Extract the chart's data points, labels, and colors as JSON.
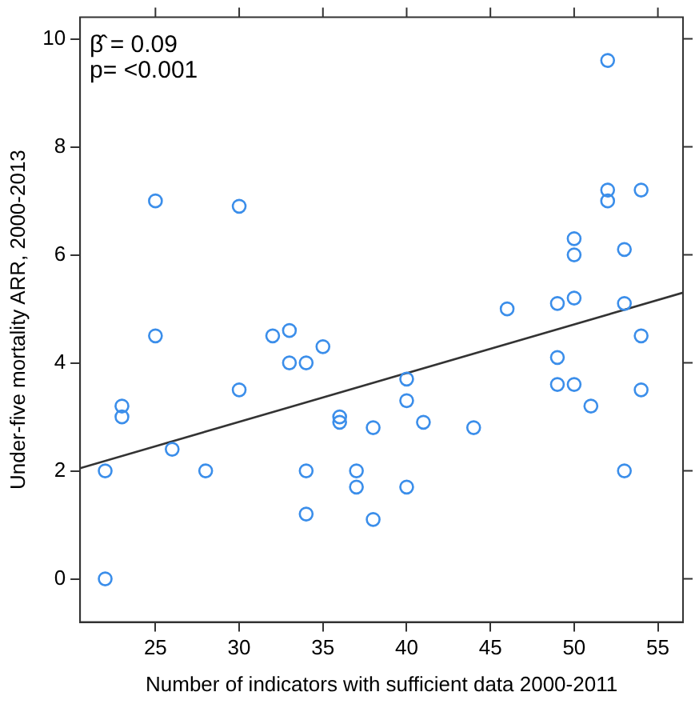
{
  "chart_data": {
    "type": "scatter",
    "xlabel": "Number of indicators with sufficient data 2000-2011",
    "ylabel": "Under-five mortality ARR, 2000-2013",
    "annotations": [
      "β̂ = 0.09",
      "p= <0.001"
    ],
    "series": [
      {
        "color": "#3b8eea",
        "marker": "circle",
        "x": [
          22,
          22,
          23,
          23,
          25,
          25,
          26,
          28,
          30,
          30,
          32,
          33,
          33,
          34,
          34,
          34,
          35,
          36,
          36,
          37,
          37,
          38,
          38,
          40,
          40,
          40,
          41,
          44,
          46,
          49,
          49,
          49,
          50,
          50,
          50,
          50,
          51,
          52,
          52,
          52,
          53,
          53,
          53,
          54,
          54,
          54
        ],
        "values": [
          0,
          2,
          3.2,
          3.0,
          7,
          4.5,
          2.4,
          2,
          6.9,
          3.5,
          4.5,
          4.6,
          4,
          4,
          2,
          1.2,
          4.3,
          3,
          2.9,
          2,
          1.7,
          2.8,
          1.1,
          3.7,
          3.3,
          1.7,
          2.9,
          2.8,
          5,
          5.1,
          4.1,
          3.6,
          6.3,
          6,
          5.2,
          3.6,
          3.2,
          9.6,
          7.2,
          7,
          6.1,
          5.1,
          2,
          7.2,
          4.5,
          3.5
        ]
      },
      {
        "type": "line",
        "color": "#333333",
        "marker": "none",
        "x": [
          20.5,
          56.5
        ],
        "values": [
          2.05,
          5.3
        ]
      }
    ],
    "xlim": [
      20.5,
      56.5
    ],
    "ylim": [
      -0.8,
      10.4
    ],
    "xticks": [
      25,
      30,
      35,
      40,
      45,
      50,
      55
    ],
    "yticks": [
      0,
      2,
      4,
      6,
      8,
      10
    ],
    "grid": false,
    "legend": false
  }
}
